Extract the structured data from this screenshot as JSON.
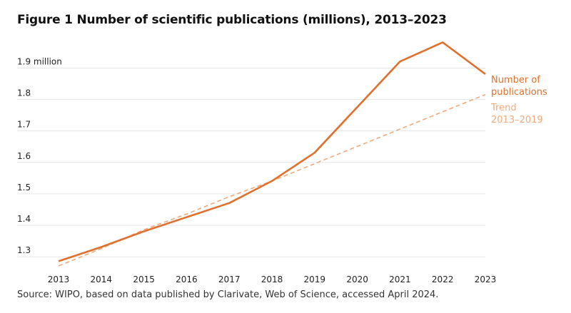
{
  "title": "Figure 1 Number of scientific publications (millions), 2013–2023",
  "source": "Source: WIPO, based on data published by Clarivate, Web of Science, accessed April 2024.",
  "colors": {
    "series": "#e0702e",
    "trend": "#f0aa7c",
    "grid": "#e6e6e6"
  },
  "chart_data": {
    "type": "line",
    "title": "Figure 1 Number of scientific publications (millions), 2013–2023",
    "xlabel": "",
    "ylabel": "",
    "x": [
      "2013",
      "2014",
      "2015",
      "2016",
      "2017",
      "2018",
      "2019",
      "2020",
      "2021",
      "2022",
      "2023"
    ],
    "ylim": [
      1.23,
      1.96
    ],
    "yticks": [
      1.3,
      1.4,
      1.5,
      1.6,
      1.7,
      1.8,
      1.9
    ],
    "ytick_labels": [
      "1.3",
      "1.4",
      "1.5",
      "1.6",
      "1.7",
      "1.8",
      "1.9 million"
    ],
    "grid": true,
    "series": [
      {
        "name": "Number of publications",
        "style": "solid",
        "values": [
          1.27,
          1.315,
          1.365,
          1.41,
          1.455,
          1.525,
          1.615,
          1.76,
          1.905,
          1.966,
          1.865
        ]
      },
      {
        "name": "Trend 2013–2019",
        "style": "dashed",
        "values": [
          1.255,
          1.31,
          1.37,
          1.42,
          1.475,
          1.525,
          1.58,
          1.635,
          1.69,
          1.745,
          1.8
        ]
      }
    ],
    "legend_lines": [
      [
        "Number of",
        "publications"
      ],
      [
        "Trend",
        "2013–2019"
      ]
    ],
    "legend_placement": "right"
  }
}
